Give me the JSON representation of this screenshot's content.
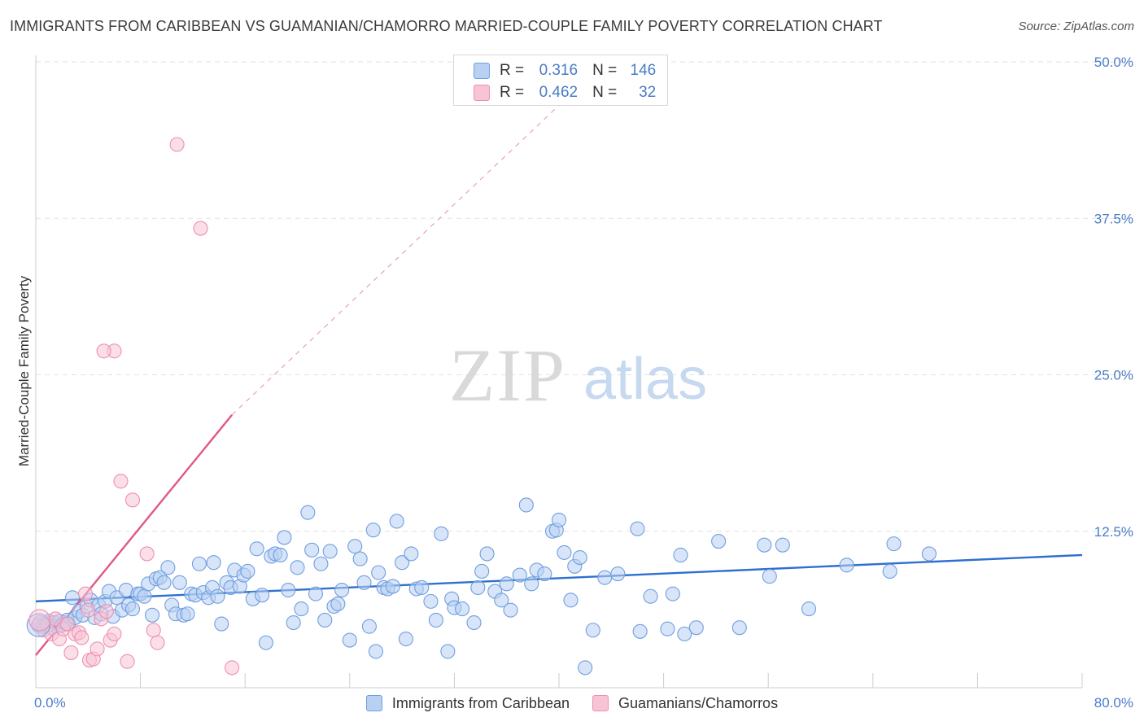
{
  "title": "IMMIGRANTS FROM CARIBBEAN VS GUAMANIAN/CHAMORRO MARRIED-COUPLE FAMILY POVERTY CORRELATION CHART",
  "source": "Source: ZipAtlas.com",
  "watermark": {
    "zip": "ZIP",
    "atlas": "atlas"
  },
  "legend": {
    "r_label": "R =",
    "n_label": "N =",
    "rows": [
      {
        "r": "0.316",
        "n": "146"
      },
      {
        "r": "0.462",
        "n": "32"
      }
    ]
  },
  "chart_data": {
    "type": "scatter",
    "title": "IMMIGRANTS FROM CARIBBEAN VS GUAMANIAN/CHAMORRO MARRIED-COUPLE FAMILY POVERTY CORRELATION CHART",
    "xlabel": "",
    "ylabel": "Married-Couple Family Poverty",
    "xlim": [
      0,
      80
    ],
    "ylim": [
      0,
      50
    ],
    "x_tick_labels": [
      "0.0%",
      "80.0%"
    ],
    "y_ticks": [
      12.5,
      25.0,
      37.5,
      50.0
    ],
    "y_tick_labels": [
      "12.5%",
      "25.0%",
      "37.5%",
      "50.0%"
    ],
    "grid": true,
    "legend_position": "top-center",
    "series": [
      {
        "name": "Immigrants from Caribbean",
        "color": "#6f9fe0",
        "fill": "#b8d0f2",
        "line_color": "#2f6fcf",
        "trendline": {
          "x0": 0,
          "y0": 6.9,
          "x1": 80,
          "y1": 10.6,
          "dashed_from": null
        },
        "points": [
          [
            0.2,
            5.0
          ],
          [
            0.5,
            4.9
          ],
          [
            0.8,
            5.1
          ],
          [
            1.0,
            5.3
          ],
          [
            1.2,
            4.8
          ],
          [
            1.4,
            5.2
          ],
          [
            1.6,
            4.9
          ],
          [
            1.8,
            5.3
          ],
          [
            2.0,
            5.0
          ],
          [
            2.2,
            5.2
          ],
          [
            2.4,
            5.4
          ],
          [
            2.5,
            5.1
          ],
          [
            2.8,
            7.2
          ],
          [
            3.0,
            5.6
          ],
          [
            3.3,
            6.1
          ],
          [
            3.6,
            5.8
          ],
          [
            3.9,
            6.5
          ],
          [
            4.2,
            7.0
          ],
          [
            4.5,
            5.6
          ],
          [
            4.8,
            6.6
          ],
          [
            5.0,
            5.9
          ],
          [
            5.3,
            6.9
          ],
          [
            5.6,
            7.7
          ],
          [
            5.9,
            5.7
          ],
          [
            6.2,
            7.2
          ],
          [
            6.6,
            6.2
          ],
          [
            6.9,
            7.8
          ],
          [
            7.1,
            6.6
          ],
          [
            7.4,
            6.3
          ],
          [
            7.8,
            7.5
          ],
          [
            8.0,
            7.5
          ],
          [
            8.3,
            7.3
          ],
          [
            8.6,
            8.3
          ],
          [
            8.9,
            5.8
          ],
          [
            9.2,
            8.7
          ],
          [
            9.5,
            8.8
          ],
          [
            9.8,
            8.4
          ],
          [
            10.1,
            9.6
          ],
          [
            10.4,
            6.6
          ],
          [
            10.7,
            5.9
          ],
          [
            11.0,
            8.4
          ],
          [
            11.3,
            5.8
          ],
          [
            11.6,
            5.9
          ],
          [
            11.9,
            7.5
          ],
          [
            12.2,
            7.4
          ],
          [
            12.5,
            9.9
          ],
          [
            12.8,
            7.6
          ],
          [
            13.2,
            7.2
          ],
          [
            13.5,
            8.0
          ],
          [
            13.9,
            7.3
          ],
          [
            14.2,
            5.1
          ],
          [
            14.6,
            8.4
          ],
          [
            14.9,
            8.0
          ],
          [
            15.2,
            9.4
          ],
          [
            15.6,
            8.1
          ],
          [
            15.9,
            9.0
          ],
          [
            16.2,
            9.3
          ],
          [
            16.6,
            7.1
          ],
          [
            16.9,
            11.1
          ],
          [
            17.3,
            7.4
          ],
          [
            17.6,
            3.6
          ],
          [
            18.0,
            10.5
          ],
          [
            18.3,
            10.7
          ],
          [
            18.7,
            10.6
          ],
          [
            19.0,
            12.0
          ],
          [
            19.3,
            7.8
          ],
          [
            19.7,
            5.2
          ],
          [
            20.0,
            9.6
          ],
          [
            20.3,
            6.3
          ],
          [
            20.8,
            14.0
          ],
          [
            21.1,
            11.0
          ],
          [
            21.4,
            7.5
          ],
          [
            21.8,
            9.9
          ],
          [
            22.1,
            5.4
          ],
          [
            22.5,
            10.9
          ],
          [
            22.8,
            6.5
          ],
          [
            23.1,
            6.7
          ],
          [
            23.4,
            7.8
          ],
          [
            24.0,
            3.8
          ],
          [
            24.4,
            11.3
          ],
          [
            24.8,
            10.3
          ],
          [
            25.1,
            8.4
          ],
          [
            25.5,
            4.9
          ],
          [
            25.8,
            12.6
          ],
          [
            26.2,
            9.2
          ],
          [
            26.6,
            8.0
          ],
          [
            26.9,
            7.9
          ],
          [
            27.3,
            8.1
          ],
          [
            27.6,
            13.3
          ],
          [
            28.0,
            10.0
          ],
          [
            28.3,
            3.9
          ],
          [
            28.7,
            10.7
          ],
          [
            29.1,
            7.9
          ],
          [
            29.5,
            8.0
          ],
          [
            30.2,
            6.9
          ],
          [
            30.6,
            5.4
          ],
          [
            31.0,
            12.3
          ],
          [
            31.8,
            7.1
          ],
          [
            32.0,
            6.4
          ],
          [
            32.6,
            6.3
          ],
          [
            33.5,
            5.2
          ],
          [
            33.8,
            8.0
          ],
          [
            34.1,
            9.3
          ],
          [
            34.5,
            10.7
          ],
          [
            35.1,
            7.7
          ],
          [
            35.6,
            7.0
          ],
          [
            36.0,
            8.3
          ],
          [
            36.3,
            6.2
          ],
          [
            37.0,
            9.0
          ],
          [
            37.5,
            14.6
          ],
          [
            37.9,
            8.3
          ],
          [
            38.3,
            9.4
          ],
          [
            38.9,
            9.1
          ],
          [
            39.5,
            12.5
          ],
          [
            39.8,
            12.6
          ],
          [
            40.0,
            13.4
          ],
          [
            40.4,
            10.8
          ],
          [
            40.9,
            7.0
          ],
          [
            41.2,
            9.7
          ],
          [
            41.6,
            10.4
          ],
          [
            42.6,
            4.6
          ],
          [
            43.5,
            8.8
          ],
          [
            44.5,
            9.1
          ],
          [
            46.0,
            12.7
          ],
          [
            46.2,
            4.5
          ],
          [
            47.0,
            7.3
          ],
          [
            48.3,
            4.7
          ],
          [
            48.7,
            7.5
          ],
          [
            49.3,
            10.6
          ],
          [
            49.6,
            4.3
          ],
          [
            50.5,
            4.8
          ],
          [
            52.2,
            11.7
          ],
          [
            53.8,
            4.8
          ],
          [
            55.7,
            11.4
          ],
          [
            56.1,
            8.9
          ],
          [
            57.1,
            11.4
          ],
          [
            59.1,
            6.3
          ],
          [
            62.0,
            9.8
          ],
          [
            65.3,
            9.3
          ],
          [
            65.6,
            11.5
          ],
          [
            68.3,
            10.7
          ],
          [
            26.0,
            2.9
          ],
          [
            13.6,
            10.0
          ],
          [
            31.5,
            2.9
          ],
          [
            42.0,
            1.6
          ]
        ]
      },
      {
        "name": "Guamanians/Chamorros",
        "color": "#ee8fb0",
        "fill": "#f7c4d6",
        "line_color": "#e0578a",
        "trendline": {
          "x0": 0,
          "y0": 2.6,
          "x1": 15.0,
          "y1": 21.8,
          "dashed_to": {
            "x": 43.0,
            "y": 49.5
          }
        },
        "points": [
          [
            0.3,
            5.2
          ],
          [
            0.6,
            4.6
          ],
          [
            0.9,
            5.0
          ],
          [
            1.2,
            4.3
          ],
          [
            1.5,
            5.5
          ],
          [
            1.8,
            3.9
          ],
          [
            2.1,
            4.7
          ],
          [
            2.4,
            5.1
          ],
          [
            2.7,
            2.8
          ],
          [
            3.0,
            4.3
          ],
          [
            3.3,
            4.4
          ],
          [
            3.5,
            4.0
          ],
          [
            3.8,
            7.5
          ],
          [
            4.1,
            2.2
          ],
          [
            4.4,
            2.3
          ],
          [
            4.7,
            3.1
          ],
          [
            5.0,
            5.5
          ],
          [
            5.4,
            6.1
          ],
          [
            5.7,
            3.8
          ],
          [
            6.0,
            4.3
          ],
          [
            6.5,
            16.5
          ],
          [
            7.0,
            2.1
          ],
          [
            7.4,
            15.0
          ],
          [
            8.5,
            10.7
          ],
          [
            9.0,
            4.6
          ],
          [
            9.3,
            3.6
          ],
          [
            6.0,
            26.9
          ],
          [
            5.2,
            26.9
          ],
          [
            10.8,
            43.4
          ],
          [
            12.6,
            36.7
          ],
          [
            15.0,
            1.6
          ],
          [
            4.0,
            6.2
          ]
        ]
      }
    ]
  }
}
